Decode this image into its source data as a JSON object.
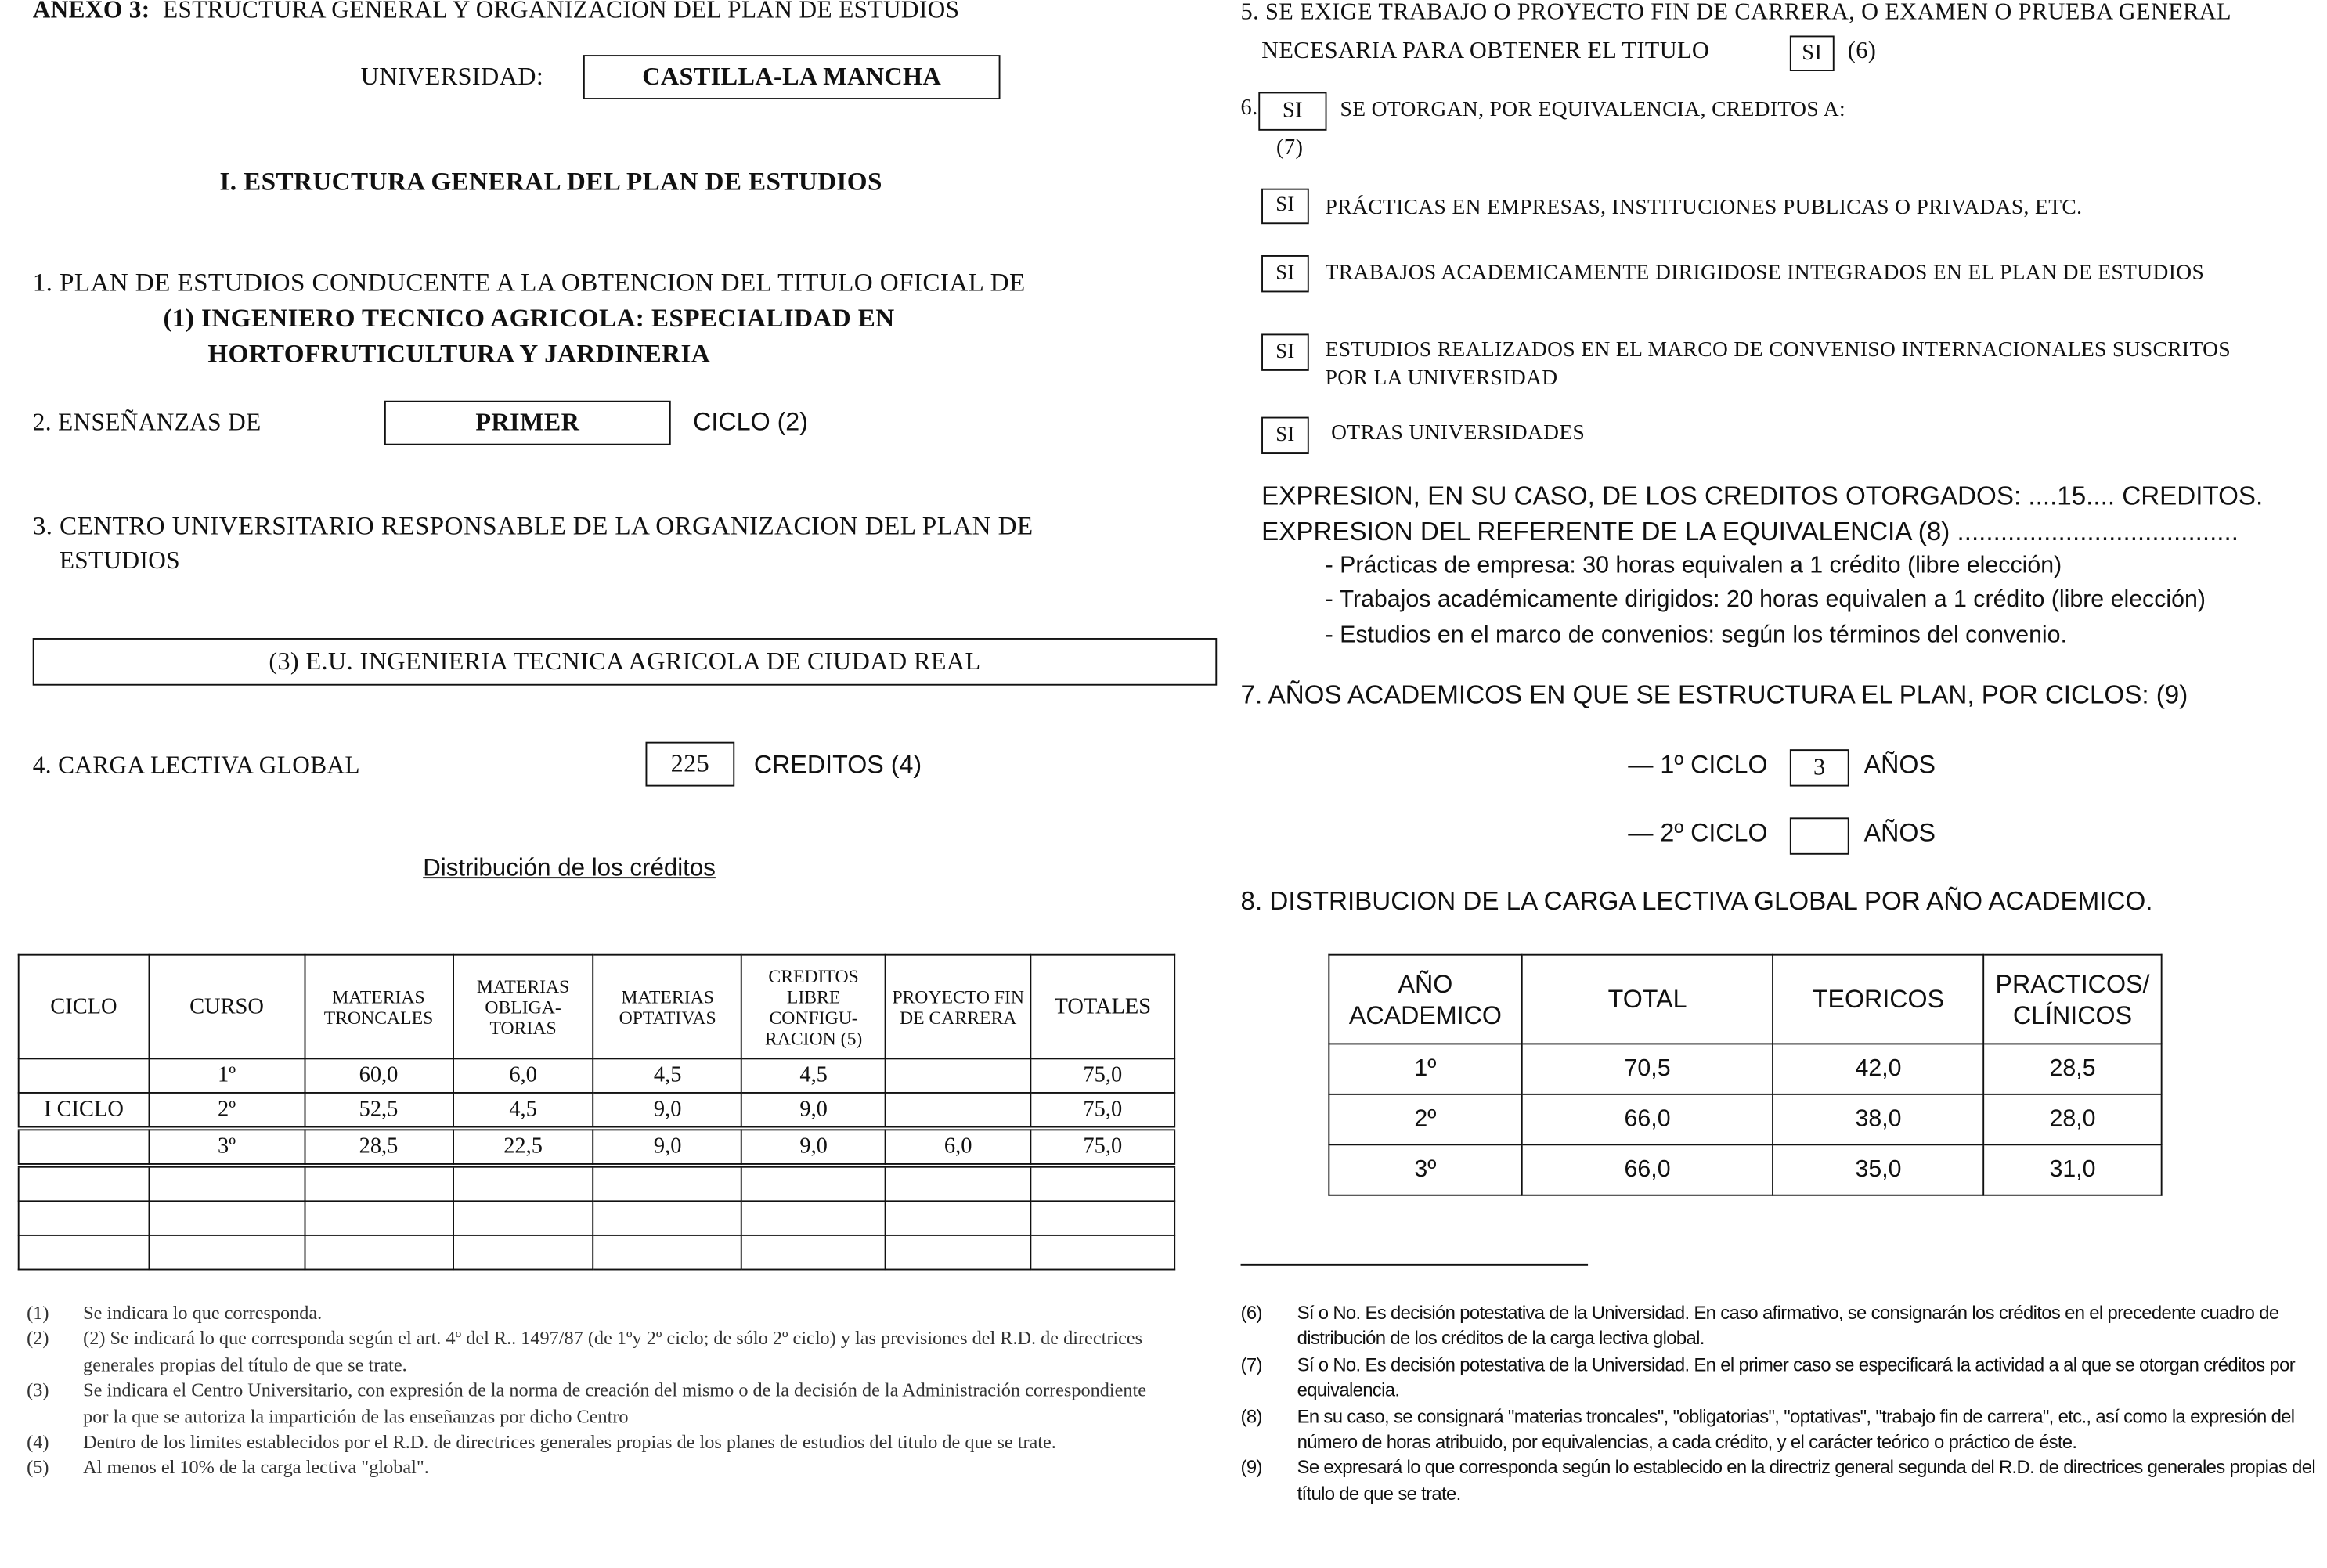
{
  "left": {
    "annex_title": "ANEXO 3:",
    "annex_subtitle": "ESTRUCTURA GENERAL Y ORGANIZACIÓN DEL PLAN DE ESTUDIOS",
    "university_label": "UNIVERSIDAD:",
    "university_value": "CASTILLA-LA MANCHA",
    "section_title": "I. ESTRUCTURA GENERAL DEL PLAN DE ESTUDIOS",
    "item1_label": "1. PLAN DE ESTUDIOS CONDUCENTE A LA OBTENCION DEL TITULO OFICIAL DE",
    "item1_value_line1": "(1) INGENIERO TECNICO AGRICOLA: ESPECIALIDAD EN",
    "item1_value_line2": "HORTOFRUTICULTURA Y JARDINERIA",
    "item2_label": "2. ENSEÑANZAS DE",
    "item2_value": "PRIMER",
    "item2_suffix": "CICLO (2)",
    "item3_label_line1": "3. CENTRO UNIVERSITARIO RESPONSABLE DE LA ORGANIZACION DEL PLAN DE",
    "item3_label_line2": "ESTUDIOS",
    "item3_value": "(3) E.U. INGENIERIA TECNICA AGRICOLA DE CIUDAD REAL",
    "item4_label": "4. CARGA LECTIVA GLOBAL",
    "item4_value": "225",
    "item4_suffix": "CREDITOS (4)",
    "distribution_title": "Distribución de los créditos",
    "table": {
      "headers": [
        "CICLO",
        "CURSO",
        "MATERIAS TRONCALES",
        "MATERIAS OBLIGA-TORIAS",
        "MATERIAS OPTATIVAS",
        "CREDITOS LIBRE CONFIGU-RACION (5)",
        "PROYECTO FIN DE CARRERA",
        "TOTALES"
      ],
      "rows": [
        [
          "",
          "1º",
          "60,0",
          "6,0",
          "4,5",
          "4,5",
          "",
          "75,0"
        ],
        [
          "I CICLO",
          "2º",
          "52,5",
          "4,5",
          "9,0",
          "9,0",
          "",
          "75,0"
        ],
        [
          "",
          "3º",
          "28,5",
          "22,5",
          "9,0",
          "9,0",
          "6,0",
          "75,0"
        ],
        [
          "",
          "",
          "",
          "",
          "",
          "",
          "",
          ""
        ],
        [
          "",
          "",
          "",
          "",
          "",
          "",
          "",
          ""
        ],
        [
          "",
          "",
          "",
          "",
          "",
          "",
          "",
          ""
        ]
      ]
    },
    "footnotes": [
      {
        "n": "(1)",
        "text": "Se indicara lo que corresponda."
      },
      {
        "n": "(2)",
        "text": "(2) Se indicará lo que corresponda según el art. 4º del R.. 1497/87 (de 1ºy 2º ciclo; de sólo 2º ciclo) y las previsiones del R.D. de directrices generales propias del título de que se trate."
      },
      {
        "n": "(3)",
        "text": "Se indicara el Centro Universitario, con expresión de la norma de creación del mismo o de la decisión de la Administración correspondiente por la que se autoriza la impartición de las enseñanzas por dicho Centro"
      },
      {
        "n": "(4)",
        "text": "Dentro de los limites establecidos por el R.D. de directrices generales propias de los planes de estudios del titulo de que se trate."
      },
      {
        "n": "(5)",
        "text": "Al menos el 10% de la carga lectiva \"global\"."
      }
    ]
  },
  "right": {
    "item5_line1": "5. SE EXIGE TRABAJO O PROYECTO FIN DE CARRERA, O EXAMEN O PRUEBA GENERAL",
    "item5_line2": "NECESARIA PARA OBTENER EL TITULO",
    "item5_value": "SI",
    "item5_note": "(6)",
    "item6_number": "6.",
    "item6_value": "SI",
    "item6_label": "SE OTORGAN, POR EQUIVALENCIA, CREDITOS A:",
    "item6_note": "(7)",
    "equivalences": [
      {
        "value": "SI",
        "label": "PRÁCTICAS EN EMPRESAS, INSTITUCIONES PUBLICAS O PRIVADAS, ETC."
      },
      {
        "value": "SI",
        "label": "TRABAJOS ACADEMICAMENTE DIRIGIDOSE INTEGRADOS EN EL PLAN DE ESTUDIOS"
      },
      {
        "value": "SI",
        "label": "ESTUDIOS REALIZADOS EN EL MARCO DE CONVENISO INTERNACIONALES SUSCRITOS",
        "label2": "POR LA UNIVERSIDAD"
      },
      {
        "value": "SI",
        "label": "OTRAS UNIVERSIDADES"
      }
    ],
    "credits_expression": "EXPRESION, EN SU CASO, DE LOS CREDITOS OTORGADOS: ....15.... CREDITOS.",
    "equivalence_reference": "EXPRESION DEL REFERENTE DE LA EQUIVALENCIA (8) .......................................",
    "equivalence_items": [
      "- Prácticas de empresa: 30 horas equivalen a 1 crédito (libre elección)",
      "- Trabajos académicamente dirigidos: 20 horas equivalen a 1 crédito (libre elección)",
      "- Estudios en el marco de convenios: según los términos del convenio."
    ],
    "item7_label": "7. AÑOS ACADEMICOS EN QUE SE ESTRUCTURA EL PLAN, POR CICLOS: (9)",
    "cycle1_label": "— 1º CICLO",
    "cycle1_value": "3",
    "cycle2_label": "— 2º CICLO",
    "cycle2_value": "",
    "years_label": "AÑOS",
    "item8_label": "8. DISTRIBUCION DE LA CARGA LECTIVA GLOBAL POR AÑO ACADEMICO.",
    "table": {
      "headers": [
        "AÑO ACADEMICO",
        "TOTAL",
        "TEORICOS",
        "PRACTICOS/ CLÍNICOS"
      ],
      "rows": [
        [
          "1º",
          "70,5",
          "42,0",
          "28,5"
        ],
        [
          "2º",
          "66,0",
          "38,0",
          "28,0"
        ],
        [
          "3º",
          "66,0",
          "35,0",
          "31,0"
        ]
      ]
    },
    "footnotes": [
      {
        "n": "(6)",
        "text": "Sí o No. Es decisión potestativa de la Universidad. En caso afirmativo, se consignarán los créditos en el precedente cuadro de distribución de los créditos de la carga lectiva global."
      },
      {
        "n": "(7)",
        "text": "Sí o No. Es decisión potestativa de la Universidad. En el primer caso se especificará la actividad a al que se otorgan créditos por equivalencia."
      },
      {
        "n": "(8)",
        "text": "En su caso, se consignará \"materias troncales\", \"obligatorias\", \"optativas\", \"trabajo fin de carrera\", etc., así como la expresión del número de horas atribuido, por equivalencias, a cada crédito, y el carácter teórico o práctico de éste."
      },
      {
        "n": "(9)",
        "text": "Se expresará lo que corresponda según lo establecido en la directriz general segunda del R.D. de directrices generales propias del título de que se trate."
      }
    ]
  }
}
